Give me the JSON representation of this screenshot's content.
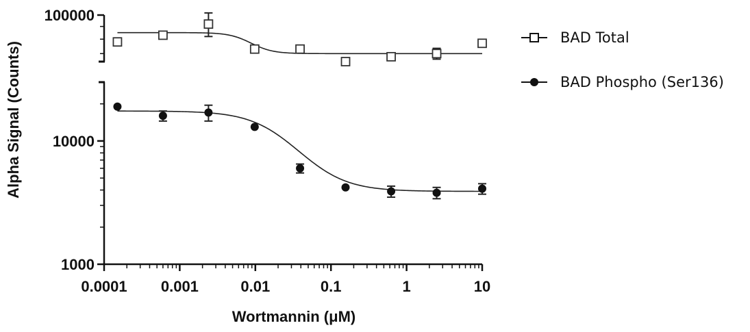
{
  "chart_data": {
    "type": "scatter",
    "title": "",
    "xlabel": "Wortmannin (μM)",
    "ylabel": "Alpha Signal (Counts)",
    "x_scale": "log",
    "y_scale": "log",
    "y_axis_break": [
      30000,
      65000
    ],
    "xlim": [
      0.0001,
      10
    ],
    "ylim": [
      1000,
      100000
    ],
    "x_ticks": [
      "0.0001",
      "0.001",
      "0.01",
      "0.1",
      "1",
      "10"
    ],
    "y_ticks": [
      "1000",
      "10000",
      "100000"
    ],
    "grid": false,
    "legend_position": "right",
    "series": [
      {
        "name": "BAD Total",
        "marker": "open-square",
        "color": "#333333",
        "x": [
          0.00015,
          0.0006,
          0.0024,
          0.0098,
          0.039,
          0.156,
          0.625,
          2.5,
          10
        ],
        "y": [
          78000,
          83000,
          92000,
          73000,
          73000,
          63000,
          68000,
          70000,
          77000
        ],
        "y_err": [
          0,
          0,
          10000,
          0,
          0,
          0,
          0,
          3500,
          0
        ],
        "fit": {
          "top": 85000,
          "bottom": 70000,
          "ec50": 0.0085,
          "hill": 3
        }
      },
      {
        "name": "BAD Phospho (Ser136)",
        "marker": "filled-circle",
        "color": "#111111",
        "x": [
          0.00015,
          0.0006,
          0.0024,
          0.0098,
          0.039,
          0.156,
          0.625,
          2.5,
          10
        ],
        "y": [
          19000,
          16000,
          17000,
          13000,
          6000,
          4200,
          3900,
          3800,
          4100
        ],
        "y_err": [
          0,
          1500,
          2500,
          0,
          500,
          0,
          400,
          400,
          400
        ],
        "fit": {
          "top": 17500,
          "bottom": 3900,
          "ec50": 0.022,
          "hill": 1.4
        }
      }
    ]
  }
}
